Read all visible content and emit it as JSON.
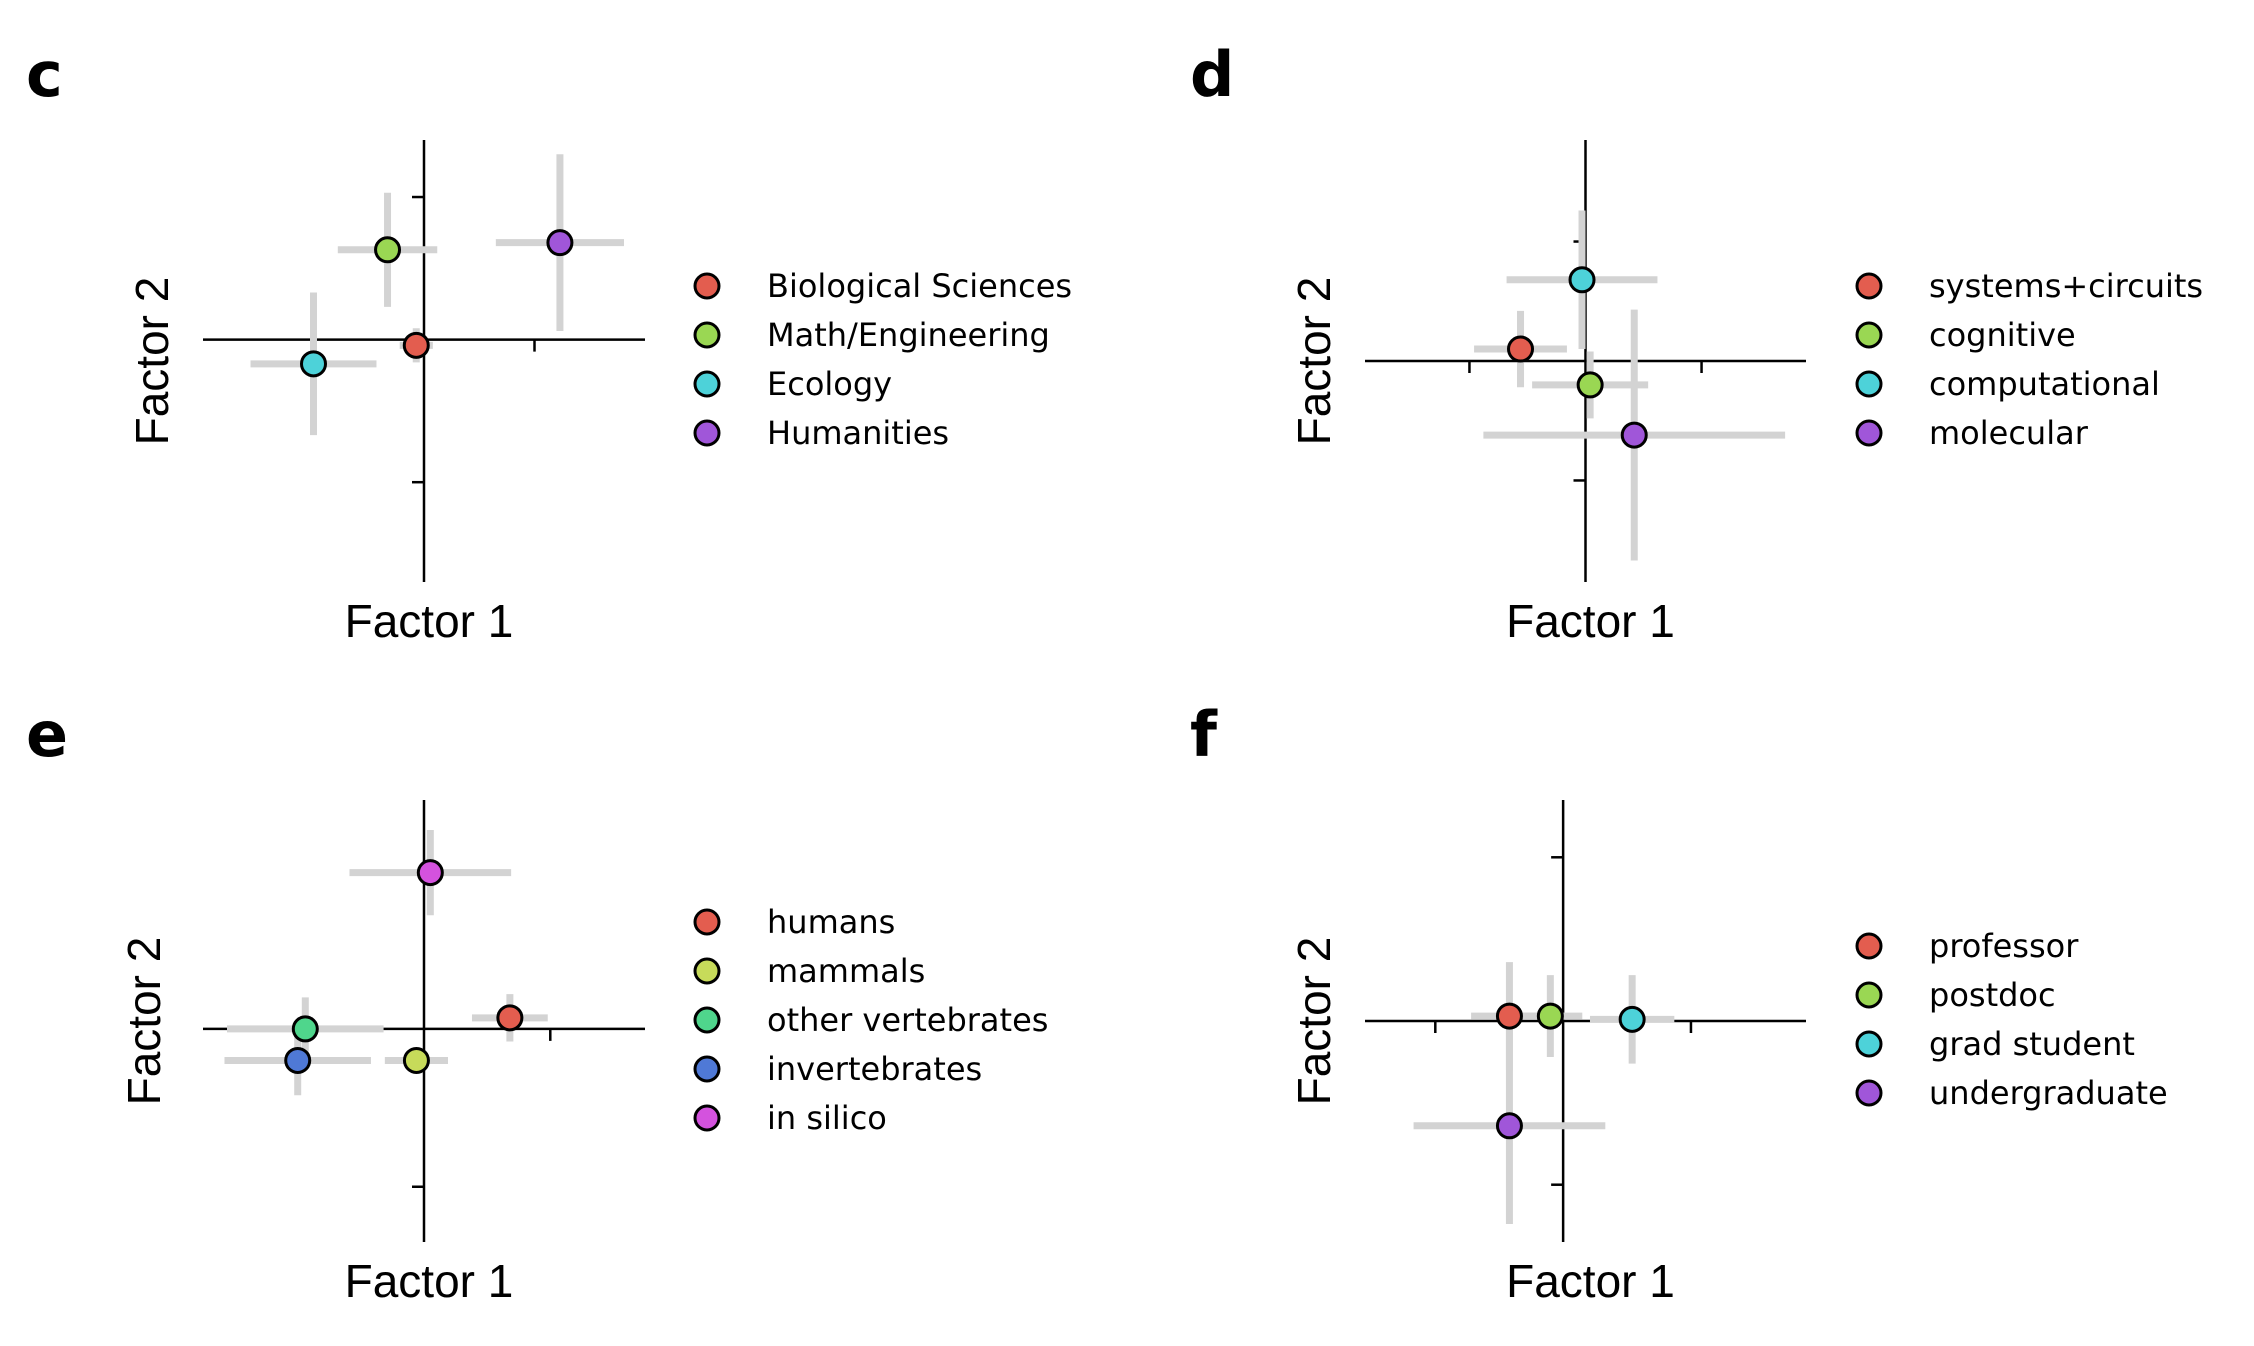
{
  "colors": {
    "error_bar": "#d3d3d3",
    "axis": "#000000",
    "marker_edge": "#000000"
  },
  "chart_data": [
    {
      "panel": "c",
      "type": "scatter",
      "xlabel": "Factor 1",
      "ylabel": "Factor 2",
      "xlim": [
        -2.0,
        2.0
      ],
      "ylim": [
        -1.7,
        1.4
      ],
      "xticks": [
        -1,
        1
      ],
      "yticks": [
        -1,
        1
      ],
      "grid": false,
      "legend_position": "right",
      "series": [
        {
          "name": "Biological Sciences",
          "color": "#e35d4f",
          "x": -0.07,
          "y": -0.04,
          "xerr": 0.15,
          "yerr": 0.12
        },
        {
          "name": "Math/Engineering",
          "color": "#9ad753",
          "x": -0.33,
          "y": 0.63,
          "xerr": 0.45,
          "yerr": 0.4
        },
        {
          "name": "Ecology",
          "color": "#4dd2d9",
          "x": -1.0,
          "y": -0.17,
          "xerr": 0.57,
          "yerr": 0.5
        },
        {
          "name": "Humanities",
          "color": "#a056d9",
          "x": 1.23,
          "y": 0.68,
          "xerr": 0.58,
          "yerr": 0.62
        }
      ]
    },
    {
      "panel": "d",
      "type": "scatter",
      "xlabel": "Factor 1",
      "ylabel": "Factor 2",
      "xlim": [
        -1.9,
        1.9
      ],
      "ylim": [
        -1.85,
        1.85
      ],
      "xticks": [
        -1,
        1
      ],
      "yticks": [
        -1,
        1
      ],
      "grid": false,
      "legend_position": "right",
      "series": [
        {
          "name": "systems+circuits",
          "color": "#e35d4f",
          "x": -0.56,
          "y": 0.1,
          "xerr": 0.4,
          "yerr": 0.32
        },
        {
          "name": "cognitive",
          "color": "#9ad753",
          "x": 0.04,
          "y": -0.2,
          "xerr": 0.5,
          "yerr": 0.28
        },
        {
          "name": "computational",
          "color": "#4dd2d9",
          "x": -0.03,
          "y": 0.68,
          "xerr": 0.65,
          "yerr": 0.58
        },
        {
          "name": "molecular",
          "color": "#a056d9",
          "x": 0.42,
          "y": -0.62,
          "xerr": 1.3,
          "yerr": 1.05
        }
      ]
    },
    {
      "panel": "e",
      "type": "scatter",
      "xlabel": "Factor 1",
      "ylabel": "Factor 2",
      "xlim": [
        -1.75,
        1.75
      ],
      "ylim": [
        -1.35,
        1.45
      ],
      "xticks": [
        -1,
        1
      ],
      "yticks": [
        -1,
        1
      ],
      "grid": false,
      "legend_position": "right",
      "series": [
        {
          "name": "humans",
          "color": "#e35d4f",
          "x": 0.68,
          "y": 0.07,
          "xerr": 0.3,
          "yerr": 0.15
        },
        {
          "name": "mammals",
          "color": "#c7db5a",
          "x": -0.06,
          "y": -0.2,
          "xerr": 0.25,
          "yerr": 0.08
        },
        {
          "name": "other vertebrates",
          "color": "#4fd68c",
          "x": -0.94,
          "y": 0.0,
          "xerr": 0.62,
          "yerr": 0.2
        },
        {
          "name": "invertebrates",
          "color": "#4f79d6",
          "x": -1.0,
          "y": -0.2,
          "xerr": 0.58,
          "yerr": 0.22
        },
        {
          "name": "in silico",
          "color": "#d452de",
          "x": 0.05,
          "y": 0.99,
          "xerr": 0.64,
          "yerr": 0.27
        }
      ]
    },
    {
      "panel": "f",
      "type": "scatter",
      "xlabel": "Factor 1",
      "ylabel": "Factor 2",
      "xlim": [
        -1.55,
        1.9
      ],
      "ylim": [
        -1.35,
        1.35
      ],
      "xticks": [
        -1,
        1
      ],
      "yticks": [
        -1,
        1
      ],
      "grid": false,
      "legend_position": "right",
      "series": [
        {
          "name": "professor",
          "color": "#e35d4f",
          "x": -0.42,
          "y": 0.03,
          "xerr": 0.3,
          "yerr": 0.33
        },
        {
          "name": "postdoc",
          "color": "#9ad753",
          "x": -0.1,
          "y": 0.03,
          "xerr": 0.25,
          "yerr": 0.25
        },
        {
          "name": "grad student",
          "color": "#4dd2d9",
          "x": 0.54,
          "y": 0.01,
          "xerr": 0.33,
          "yerr": 0.27
        },
        {
          "name": "undergraduate",
          "color": "#a056d9",
          "x": -0.42,
          "y": -0.64,
          "xerr": 0.75,
          "yerr": 0.6
        }
      ]
    }
  ]
}
